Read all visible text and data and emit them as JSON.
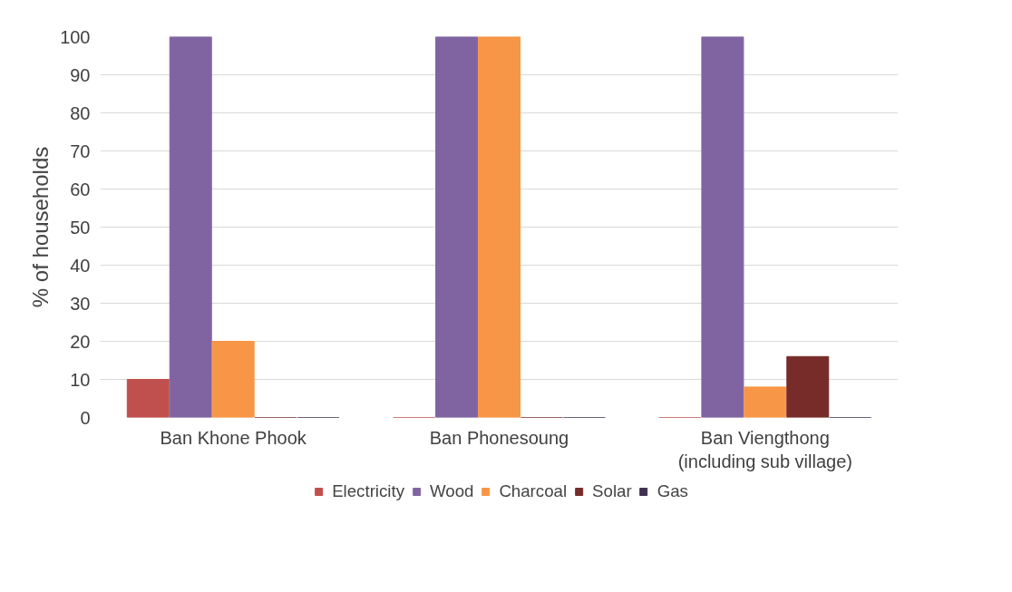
{
  "chart_data": {
    "type": "bar",
    "ylabel": "% of households",
    "categories": [
      "Ban Khone Phook",
      "Ban Phonesoung",
      "Ban Viengthong\n(including sub village)"
    ],
    "series": [
      {
        "name": "Electricity",
        "color": "#c0504d",
        "values": [
          10,
          0,
          0
        ]
      },
      {
        "name": "Wood",
        "color": "#8064a2",
        "values": [
          100,
          100,
          100
        ]
      },
      {
        "name": "Charcoal",
        "color": "#f79646",
        "values": [
          20,
          100,
          8
        ]
      },
      {
        "name": "Solar",
        "color": "#772c2a",
        "values": [
          0,
          0,
          16
        ]
      },
      {
        "name": "Gas",
        "color": "#3f3151",
        "values": [
          0,
          0,
          0
        ]
      }
    ],
    "ylim": [
      0,
      100
    ],
    "yticks": [
      0,
      10,
      20,
      30,
      40,
      50,
      60,
      70,
      80,
      90,
      100
    ],
    "grid": "y",
    "legend": "bottom"
  }
}
